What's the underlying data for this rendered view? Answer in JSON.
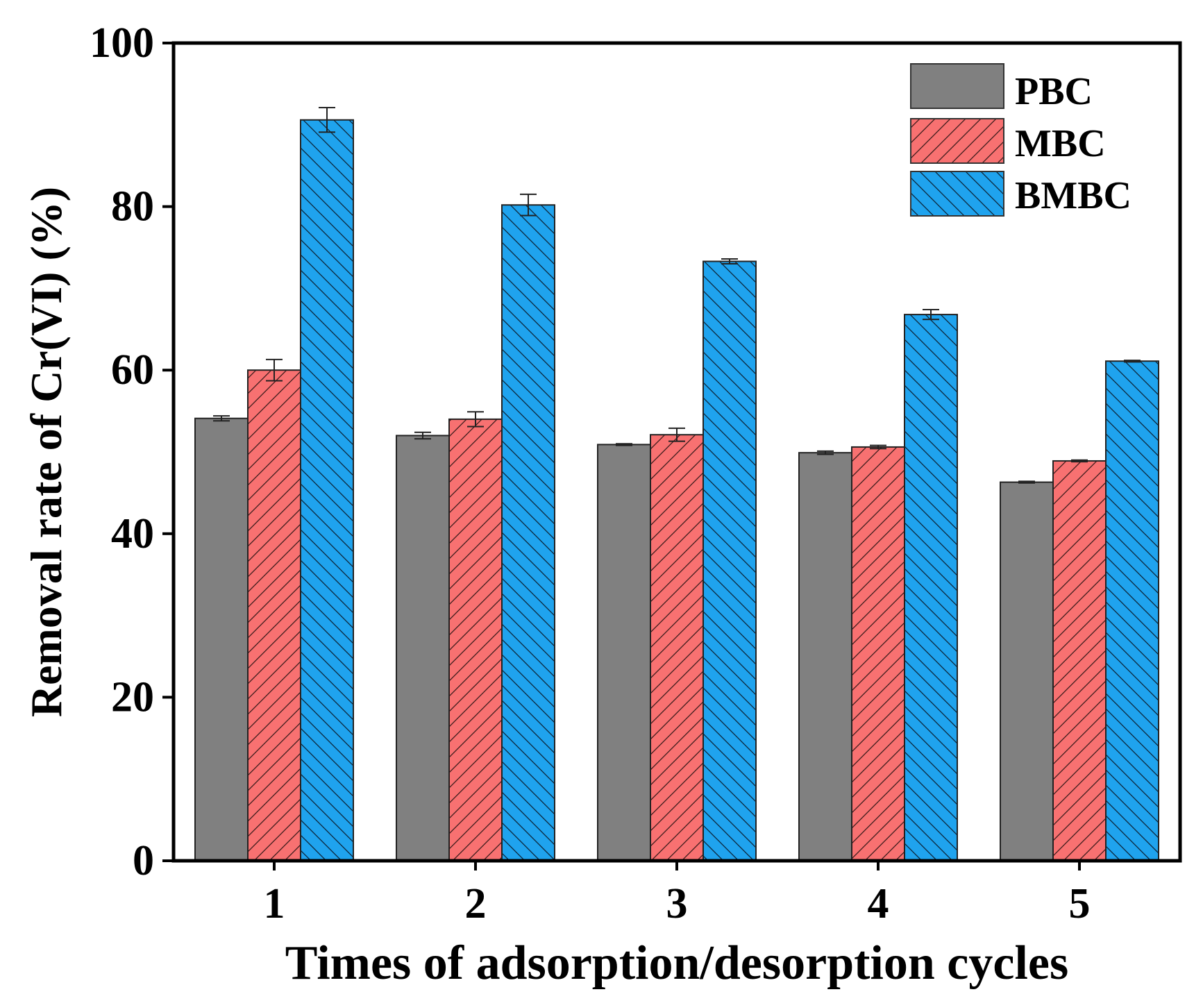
{
  "chart_data": {
    "type": "bar",
    "title": "",
    "xlabel": "Times of adsorption/desorption cycles",
    "ylabel": "Removal rate of Cr(VI) (%)",
    "categories": [
      "1",
      "2",
      "3",
      "4",
      "5"
    ],
    "ylim": [
      0,
      100
    ],
    "yticks": [
      0,
      20,
      40,
      60,
      80,
      100
    ],
    "ytick_labels": [
      "0",
      "20",
      "40",
      "60",
      "80",
      "100"
    ],
    "grid": false,
    "legend_position": "top-right",
    "series": [
      {
        "name": "PBC",
        "values": [
          54.1,
          52.0,
          50.9,
          49.9,
          46.3
        ],
        "errors": [
          0.3,
          0.4,
          0.1,
          0.2,
          0.1
        ],
        "color": "#808080",
        "hatch": "none"
      },
      {
        "name": "MBC",
        "values": [
          60.0,
          54.0,
          52.1,
          50.6,
          48.9
        ],
        "errors": [
          1.3,
          0.9,
          0.8,
          0.2,
          0.1
        ],
        "color": "#f87171",
        "hatch": "forward-diagonal"
      },
      {
        "name": "BMBC",
        "values": [
          90.6,
          80.2,
          73.3,
          66.8,
          61.1
        ],
        "errors": [
          1.5,
          1.3,
          0.3,
          0.6,
          0.1
        ],
        "color": "#1fa3ee",
        "hatch": "backward-diagonal"
      }
    ]
  }
}
